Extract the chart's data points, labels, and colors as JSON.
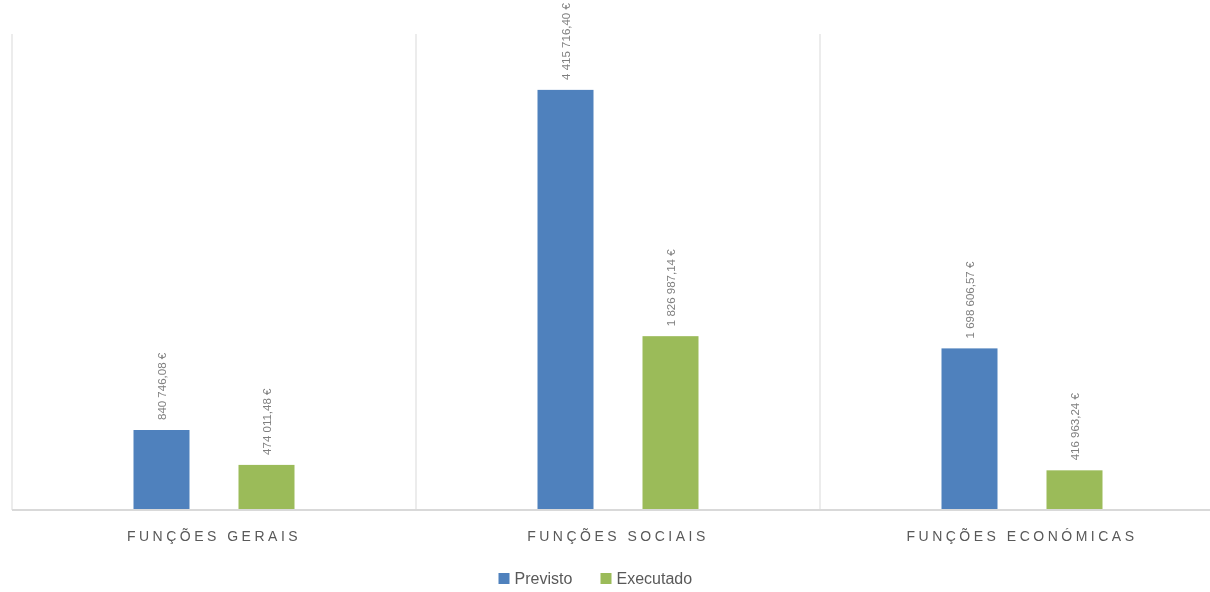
{
  "chart_data": {
    "type": "bar",
    "categories": [
      "FUNÇÕES GERAIS",
      "FUNÇÕES SOCIAIS",
      "FUNÇÕES ECONÓMICAS"
    ],
    "series": [
      {
        "name": "Previsto",
        "color": "#4f81bd",
        "values": [
          840746.08,
          4415716.4,
          1698606.57
        ],
        "value_labels": [
          "840 746,08 €",
          "4 415 716,40 €",
          "1 698 606,57 €"
        ]
      },
      {
        "name": "Executado",
        "color": "#9bbb59",
        "values": [
          474011.48,
          1826987.14,
          416963.24
        ],
        "value_labels": [
          "474 011,48 €",
          "1 826 987,14 €",
          "416 963,24 €"
        ]
      }
    ],
    "grid": "x",
    "legend": "bottom"
  }
}
